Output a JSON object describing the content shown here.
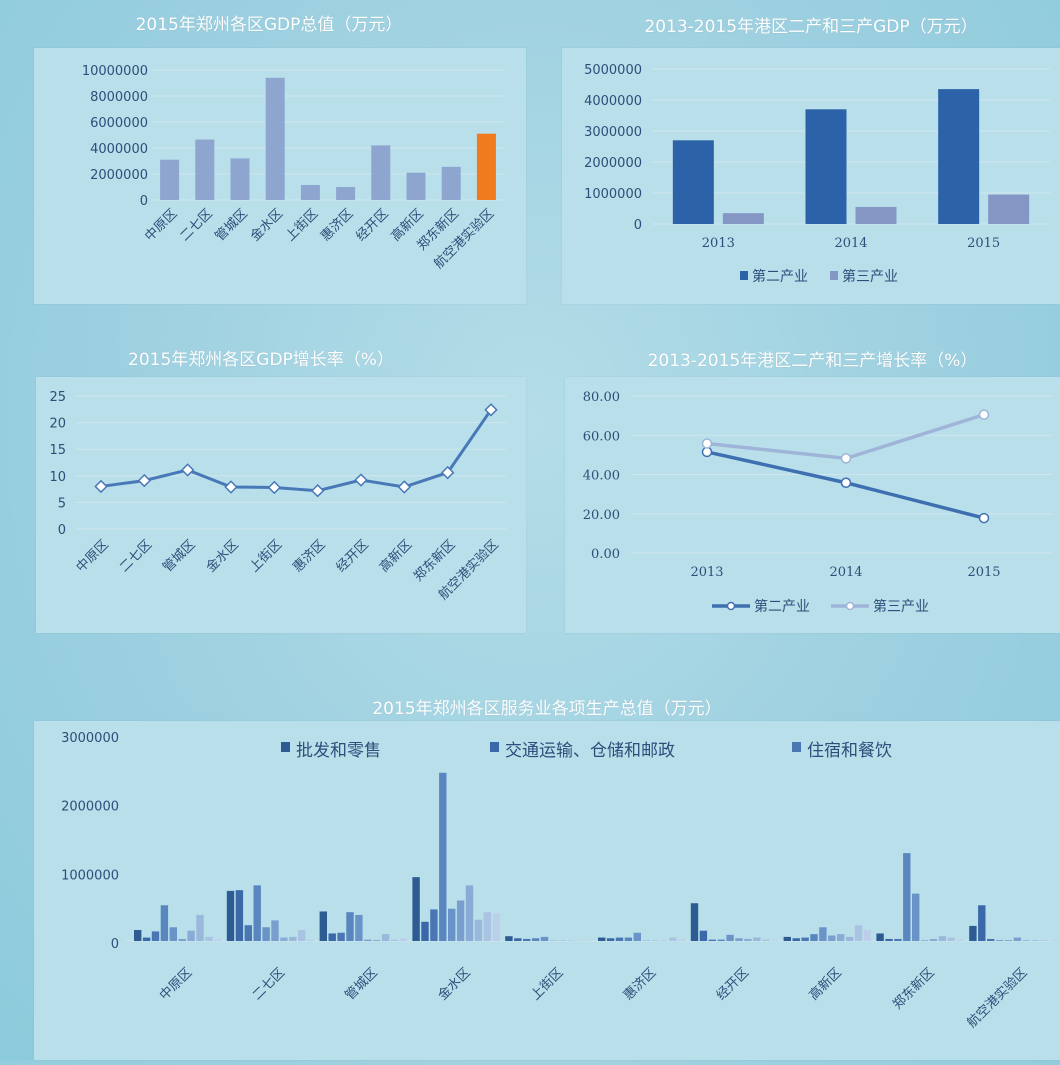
{
  "charts": [
    {
      "type": "bar",
      "title": "2015年郑州各区GDP总值（万元）",
      "categories": [
        "中原区",
        "二七区",
        "管城区",
        "金水区",
        "上街区",
        "惠济区",
        "经开区",
        "高新区",
        "郑东新区",
        "航空港实验区"
      ],
      "values": [
        3100000,
        4650000,
        3200000,
        9400000,
        1150000,
        1000000,
        4200000,
        2100000,
        2550000,
        5100000
      ],
      "yticks": [
        "0",
        "2000000",
        "4000000",
        "6000000",
        "8000000",
        "10000000"
      ],
      "ylim": [
        0,
        10000000
      ],
      "bar_color": "#8ea6cf",
      "highlight_color": "#f07a1e",
      "highlight_index": 9,
      "xlabel": "",
      "ylabel": ""
    },
    {
      "type": "bar",
      "title": "2013-2015年港区二产和三产GDP（万元）",
      "categories": [
        "2013",
        "2014",
        "2015"
      ],
      "series": [
        {
          "name": "第二产业",
          "values": [
            2700000,
            3700000,
            4350000
          ],
          "color": "#2c62a8"
        },
        {
          "name": "第三产业",
          "values": [
            350000,
            550000,
            950000
          ],
          "color": "#8496c4"
        }
      ],
      "yticks": [
        "0",
        "1000000",
        "2000000",
        "3000000",
        "4000000",
        "5000000"
      ],
      "ylim": [
        0,
        5000000
      ],
      "legend": "bottom",
      "xlabel": "",
      "ylabel": ""
    },
    {
      "type": "line",
      "title": "2015年郑州各区GDP增长率（%）",
      "categories": [
        "中原区",
        "二七区",
        "管城区",
        "金水区",
        "上街区",
        "惠济区",
        "经开区",
        "高新区",
        "郑东新区",
        "航空港实验区"
      ],
      "values": [
        8.0,
        9.1,
        11.1,
        7.9,
        7.8,
        7.2,
        9.2,
        7.9,
        10.6,
        22.4
      ],
      "yticks": [
        "0",
        "5",
        "10",
        "15",
        "20",
        "25"
      ],
      "ylim": [
        0,
        25
      ],
      "line_color": "#4978b9",
      "xlabel": "",
      "ylabel": ""
    },
    {
      "type": "line",
      "title": "2013-2015年港区二产和三产增长率（%）",
      "categories": [
        "2013",
        "2014",
        "2015"
      ],
      "series": [
        {
          "name": "第二产业",
          "values": [
            51.5,
            35.8,
            17.8
          ],
          "color": "#3e6fb0"
        },
        {
          "name": "第三产业",
          "values": [
            55.8,
            48.2,
            70.5
          ],
          "color": "#9fb4d8"
        }
      ],
      "yticks": [
        "0.00",
        "20.00",
        "40.00",
        "60.00",
        "80.00"
      ],
      "ylim": [
        0,
        80
      ],
      "legend": "bottom",
      "xlabel": "",
      "ylabel": ""
    },
    {
      "type": "bar",
      "title": "2015年郑州各区服务业各项生产总值（万元）",
      "categories": [
        "中原区",
        "二七区",
        "管城区",
        "金水区",
        "上街区",
        "惠济区",
        "经开区",
        "高新区",
        "郑东新区",
        "航空港实验区"
      ],
      "legend_entries": [
        {
          "name": "批发和零售",
          "color": "#2f5b93"
        },
        {
          "name": "交通运输、仓储和邮政",
          "color": "#3a68a8"
        },
        {
          "name": "住宿和餐饮",
          "color": "#4a77b4"
        }
      ],
      "series_colors": [
        "#2f5b93",
        "#3a68a8",
        "#4a77b4",
        "#5a86c0",
        "#6a93c8",
        "#7a9fcf",
        "#8aabd6",
        "#9ab7dc",
        "#aac3e2",
        "#bccfe8"
      ],
      "groups": [
        [
          160000,
          50000,
          140000,
          520000,
          200000,
          30000,
          150000,
          380000,
          60000,
          20000
        ],
        [
          730000,
          740000,
          230000,
          810000,
          200000,
          300000,
          50000,
          60000,
          160000,
          20000
        ],
        [
          430000,
          110000,
          120000,
          420000,
          380000,
          20000,
          15000,
          100000,
          20000,
          40000
        ],
        [
          930000,
          280000,
          460000,
          2450000,
          470000,
          590000,
          810000,
          310000,
          420000,
          400000
        ],
        [
          70000,
          40000,
          30000,
          40000,
          60000,
          5000,
          5000,
          5000,
          5000,
          5000
        ],
        [
          50000,
          40000,
          50000,
          50000,
          120000,
          5000,
          5000,
          5000,
          50000,
          20000
        ],
        [
          550000,
          150000,
          20000,
          20000,
          90000,
          40000,
          30000,
          50000,
          20000,
          10000
        ],
        [
          60000,
          40000,
          50000,
          100000,
          200000,
          80000,
          100000,
          60000,
          230000,
          160000
        ],
        [
          110000,
          30000,
          30000,
          1280000,
          690000,
          10000,
          30000,
          70000,
          50000,
          20000
        ],
        [
          220000,
          520000,
          30000,
          10000,
          10000,
          50000,
          10000,
          10000,
          10000,
          10000
        ]
      ],
      "yticks": [
        "0",
        "1000000",
        "2000000",
        "3000000"
      ],
      "ylim": [
        0,
        3000000
      ],
      "legend": "top",
      "xlabel": "",
      "ylabel": ""
    }
  ]
}
